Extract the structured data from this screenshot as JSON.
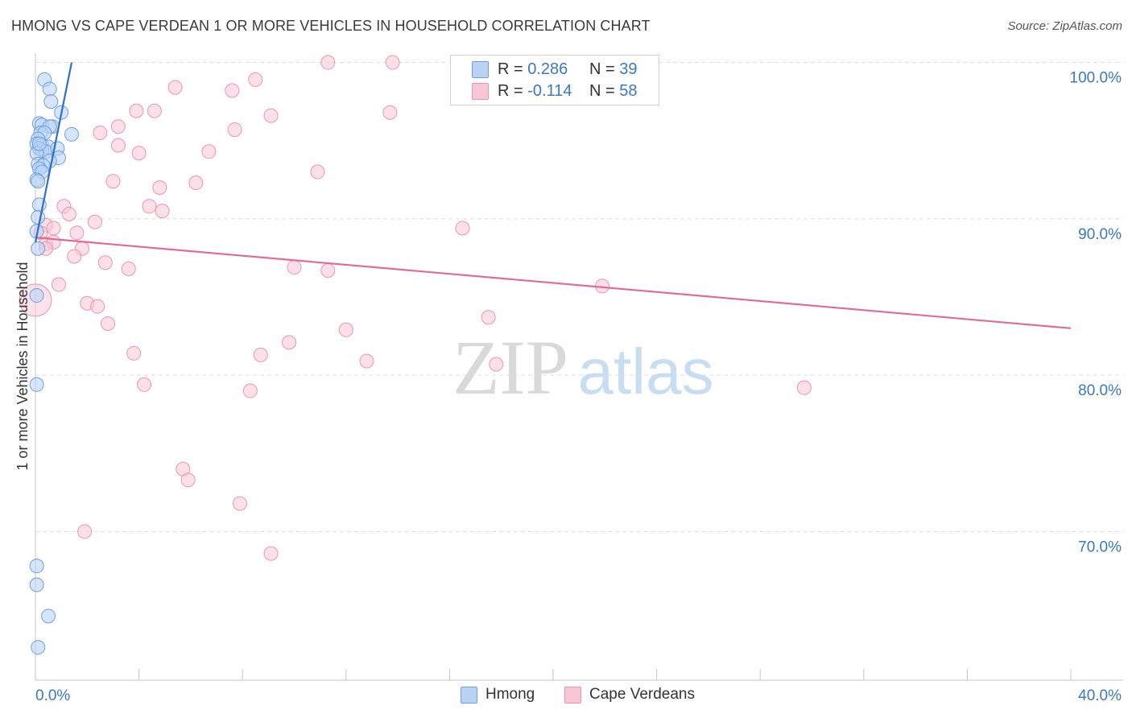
{
  "title": "HMONG VS CAPE VERDEAN 1 OR MORE VEHICLES IN HOUSEHOLD CORRELATION CHART",
  "source": "Source: ZipAtlas.com",
  "watermark": {
    "zip": "ZIP",
    "atlas": "atlas"
  },
  "colors": {
    "hmong_fill": "#bad3f5",
    "hmong_stroke": "#6e9fdc",
    "hmong_line": "#2f6fd0",
    "cape_fill": "#f9c6d5",
    "cape_stroke": "#e896b0",
    "cape_line": "#e06c95",
    "axis_label": "#3b78c4"
  },
  "legend": {
    "r_label": "R =",
    "n_label": "N =",
    "hmong": {
      "r": "0.286",
      "n": "39"
    },
    "cape": {
      "r": "-0.114",
      "n": "58"
    }
  },
  "bottom_legend": {
    "hmong": "Hmong",
    "cape": "Cape Verdeans"
  },
  "chart_data": {
    "type": "scatter",
    "title": "HMONG VS CAPE VERDEAN 1 OR MORE VEHICLES IN HOUSEHOLD CORRELATION CHART",
    "xlabel": "",
    "ylabel": "1 or more Vehicles in Household",
    "xlim": [
      0,
      40
    ],
    "ylim": [
      60.5,
      100.8
    ],
    "x_tick_labels": [
      "0.0%",
      "40.0%"
    ],
    "y_ticks": [
      100,
      90,
      80,
      70
    ],
    "y_tick_labels": [
      "100.0%",
      "90.0%",
      "80.0%",
      "70.0%"
    ],
    "grid": true,
    "series": [
      {
        "name": "Hmong",
        "r": 0.286,
        "n": 39,
        "trend": {
          "x": [
            0.0,
            1.4
          ],
          "y": [
            88.5,
            100.0
          ]
        },
        "points": [
          [
            0.35,
            98.9
          ],
          [
            0.55,
            98.3
          ],
          [
            0.6,
            97.5
          ],
          [
            1.0,
            96.8
          ],
          [
            0.15,
            96.1
          ],
          [
            0.25,
            96.0
          ],
          [
            0.65,
            95.9
          ],
          [
            0.55,
            95.9
          ],
          [
            0.2,
            95.5
          ],
          [
            0.35,
            95.5
          ],
          [
            1.4,
            95.4
          ],
          [
            0.1,
            95.1
          ],
          [
            0.05,
            94.8
          ],
          [
            0.25,
            94.7
          ],
          [
            0.5,
            94.6
          ],
          [
            0.15,
            94.5
          ],
          [
            0.25,
            94.4
          ],
          [
            0.4,
            94.3
          ],
          [
            0.05,
            94.2
          ],
          [
            0.85,
            94.5
          ],
          [
            0.9,
            93.9
          ],
          [
            0.55,
            93.7
          ],
          [
            0.1,
            93.5
          ],
          [
            0.3,
            93.4
          ],
          [
            0.15,
            93.2
          ],
          [
            0.25,
            93.0
          ],
          [
            0.05,
            92.5
          ],
          [
            0.1,
            92.4
          ],
          [
            0.15,
            90.9
          ],
          [
            0.1,
            90.1
          ],
          [
            0.05,
            89.2
          ],
          [
            0.1,
            88.1
          ],
          [
            0.05,
            85.1
          ],
          [
            0.05,
            79.4
          ],
          [
            0.05,
            67.8
          ],
          [
            0.05,
            66.6
          ],
          [
            0.5,
            64.6
          ],
          [
            0.1,
            62.6
          ],
          [
            0.15,
            94.8
          ]
        ]
      },
      {
        "name": "Cape Verdeans",
        "r": -0.114,
        "n": 58,
        "trend": {
          "x": [
            0.0,
            40.0
          ],
          "y": [
            88.8,
            83.0
          ]
        },
        "points": [
          [
            11.3,
            100.0
          ],
          [
            13.8,
            100.0
          ],
          [
            8.5,
            98.9
          ],
          [
            5.4,
            98.4
          ],
          [
            7.6,
            98.2
          ],
          [
            3.9,
            96.9
          ],
          [
            4.6,
            96.9
          ],
          [
            9.1,
            96.6
          ],
          [
            13.7,
            96.8
          ],
          [
            3.2,
            95.9
          ],
          [
            7.7,
            95.7
          ],
          [
            2.5,
            95.5
          ],
          [
            3.2,
            94.7
          ],
          [
            4.0,
            94.2
          ],
          [
            6.7,
            94.3
          ],
          [
            10.9,
            93.0
          ],
          [
            3.0,
            92.4
          ],
          [
            6.2,
            92.3
          ],
          [
            4.8,
            92.0
          ],
          [
            4.4,
            90.8
          ],
          [
            1.1,
            90.8
          ],
          [
            4.9,
            90.5
          ],
          [
            1.3,
            90.3
          ],
          [
            0.4,
            89.6
          ],
          [
            2.3,
            89.8
          ],
          [
            0.7,
            89.4
          ],
          [
            16.5,
            89.4
          ],
          [
            0.2,
            89.1
          ],
          [
            1.6,
            89.1
          ],
          [
            0.4,
            88.4
          ],
          [
            0.7,
            88.5
          ],
          [
            1.8,
            88.1
          ],
          [
            0.4,
            88.1
          ],
          [
            1.5,
            87.6
          ],
          [
            2.7,
            87.2
          ],
          [
            3.6,
            86.8
          ],
          [
            10.0,
            86.9
          ],
          [
            11.3,
            86.7
          ],
          [
            0.9,
            85.8
          ],
          [
            21.9,
            85.7
          ],
          [
            2.0,
            84.6
          ],
          [
            2.4,
            84.4
          ],
          [
            17.5,
            83.7
          ],
          [
            2.8,
            83.3
          ],
          [
            12.0,
            82.9
          ],
          [
            9.8,
            82.1
          ],
          [
            3.8,
            81.4
          ],
          [
            8.7,
            81.3
          ],
          [
            12.8,
            80.9
          ],
          [
            17.8,
            80.7
          ],
          [
            4.2,
            79.4
          ],
          [
            8.3,
            79.0
          ],
          [
            29.7,
            79.2
          ],
          [
            5.7,
            74.0
          ],
          [
            5.9,
            73.3
          ],
          [
            7.9,
            71.8
          ],
          [
            1.9,
            70.0
          ],
          [
            9.1,
            68.6
          ]
        ]
      }
    ]
  }
}
